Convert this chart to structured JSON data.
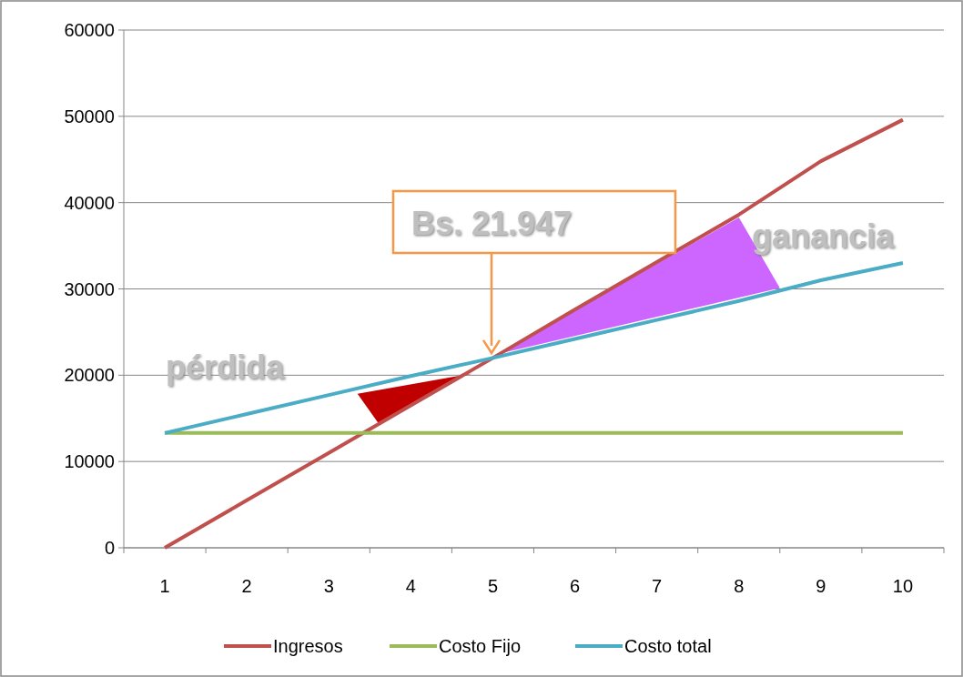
{
  "chart_data": {
    "type": "line",
    "categories": [
      "1",
      "2",
      "3",
      "4",
      "5",
      "6",
      "7",
      "8",
      "9",
      "10"
    ],
    "series": [
      {
        "name": "Ingresos",
        "color": "#c0504d",
        "values": [
          0,
          5500,
          11000,
          16500,
          22000,
          27600,
          33100,
          38600,
          44800,
          49600
        ]
      },
      {
        "name": "Costo Fijo",
        "color": "#9bbb59",
        "values": [
          13300,
          13300,
          13300,
          13300,
          13300,
          13300,
          13300,
          13300,
          13300,
          13300
        ]
      },
      {
        "name": "Costo total",
        "color": "#4bacc6",
        "values": [
          13300,
          15500,
          17700,
          19900,
          22000,
          24200,
          26400,
          28600,
          31000,
          33000
        ]
      }
    ],
    "ylim": [
      0,
      60000
    ],
    "yticks": [
      0,
      10000,
      20000,
      30000,
      40000,
      50000,
      60000
    ],
    "grid": "y",
    "legend": "bottom",
    "marker": "none",
    "line_style": "solid",
    "annotations": [
      {
        "text": "Bs. 21.947",
        "x": "5",
        "y": 21947
      },
      "pérdida",
      "ganancia"
    ]
  }
}
